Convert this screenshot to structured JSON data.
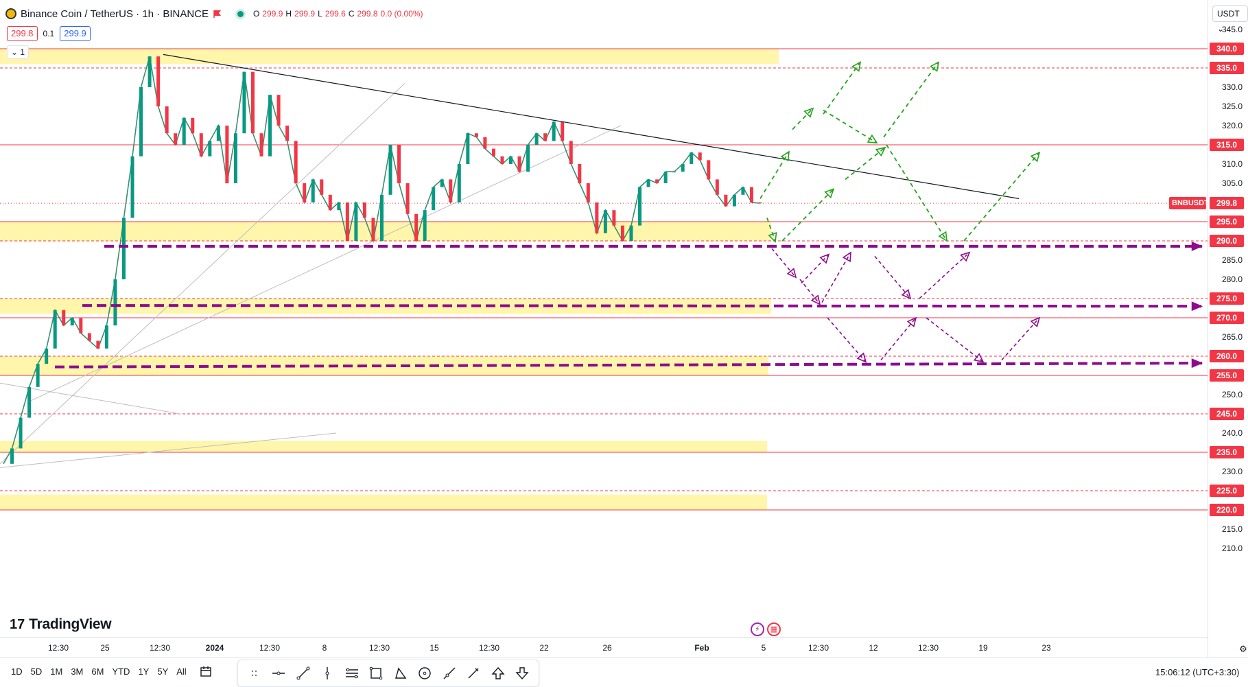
{
  "header": {
    "symbol_title": "Binance Coin / TetherUS · 1h · BINANCE",
    "ohlc": {
      "o_label": "O",
      "o": "299.9",
      "h_label": "H",
      "h": "299.9",
      "l_label": "L",
      "l": "299.6",
      "c_label": "C",
      "c": "299.8",
      "change": "0.0 (0.00%)"
    },
    "bid": "299.8",
    "spread": "0.1",
    "ask": "299.9",
    "collapse_label": "⌄ 1"
  },
  "price_axis": {
    "currency": "USDT ⌄",
    "ticks": [
      "345.0",
      "330.0",
      "325.0",
      "320.0",
      "310.0",
      "305.0",
      "285.0",
      "280.0",
      "265.0",
      "250.0",
      "240.0",
      "230.0",
      "215.0",
      "210.0"
    ],
    "labels": [
      "340.0",
      "335.0",
      "315.0",
      "295.0",
      "290.0",
      "275.0",
      "270.0",
      "260.0",
      "255.0",
      "245.0",
      "235.0",
      "225.0",
      "220.0"
    ],
    "current_price": "299.8",
    "current_symbol": "BNBUSDT"
  },
  "time_axis": {
    "ticks": [
      "12:30",
      "25",
      "12:30",
      "2024",
      "12:30",
      "8",
      "12:30",
      "15",
      "12:30",
      "22",
      "26",
      "Feb",
      "5",
      "12:30",
      "12",
      "12:30",
      "19",
      "23"
    ]
  },
  "watermark": {
    "mark": "17",
    "name": "TradingView"
  },
  "bottom_bar": {
    "ranges": [
      "1D",
      "5D",
      "1M",
      "3M",
      "6M",
      "YTD",
      "1Y",
      "5Y",
      "All"
    ],
    "clock": "15:06:12 (UTC+3:30)"
  },
  "colors": {
    "red": "#f23645",
    "yellow": "#fff59d",
    "purple": "#8e0b8e",
    "green": "#22a51a",
    "up": "#089981",
    "down": "#f23645"
  },
  "chart_data": {
    "type": "line",
    "title": "Binance Coin / TetherUS · 1h · BINANCE",
    "ylim": [
      210,
      345
    ],
    "series": [
      {
        "values": [
          232,
          236,
          244,
          252,
          258,
          262,
          272,
          268,
          270,
          266,
          264,
          262,
          268,
          280,
          296,
          312,
          330,
          338,
          325,
          318,
          315,
          322,
          318,
          312,
          316,
          320,
          305,
          318,
          334,
          318,
          312,
          328,
          320,
          316,
          305,
          300,
          306,
          302,
          298,
          300,
          290,
          300,
          296,
          290,
          302,
          315,
          305,
          297,
          290,
          298,
          304,
          306,
          300,
          310,
          318,
          317,
          314,
          312,
          310,
          312,
          308,
          315,
          318,
          316,
          321,
          316,
          310,
          305,
          300,
          292,
          298,
          294,
          290,
          294,
          304,
          306,
          305,
          308,
          308,
          310,
          313,
          311,
          306,
          302,
          299,
          302,
          304,
          300,
          299.8
        ]
      }
    ],
    "horizontal_levels": [
      340,
      335,
      315,
      299.8,
      295,
      290,
      275,
      270,
      260,
      255,
      245,
      235,
      225,
      220
    ],
    "support_zones": [
      [
        336,
        340
      ],
      [
        290,
        295
      ],
      [
        271,
        275
      ],
      [
        255,
        260
      ],
      [
        235,
        238
      ],
      [
        220,
        224
      ]
    ]
  }
}
